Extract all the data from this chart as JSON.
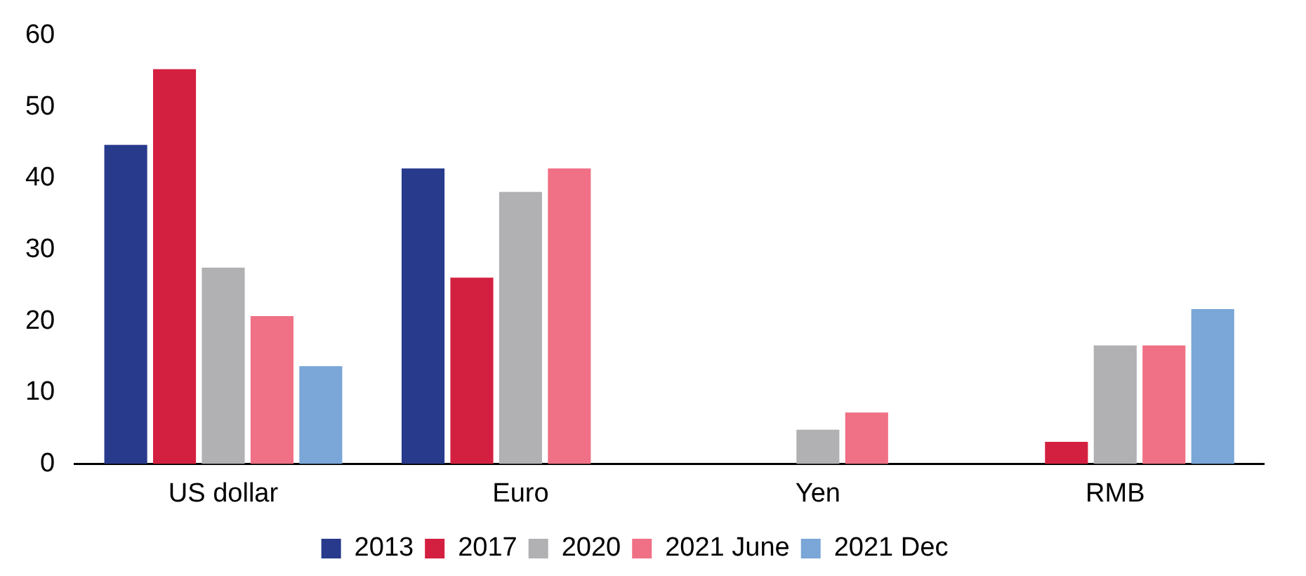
{
  "chart_data": {
    "type": "bar",
    "categories": [
      "US dollar",
      "Euro",
      "Yen",
      "RMB"
    ],
    "series": [
      {
        "name": "2013",
        "color": "#283a8c",
        "values": [
          44.7,
          41.4,
          null,
          null
        ]
      },
      {
        "name": "2017",
        "color": "#d42040",
        "values": [
          55.3,
          26.1,
          null,
          3.1
        ]
      },
      {
        "name": "2020",
        "color": "#b1b1b3",
        "values": [
          27.5,
          38.1,
          4.8,
          16.6
        ]
      },
      {
        "name": "2021 June",
        "color": "#f07086",
        "values": [
          20.7,
          41.4,
          7.2,
          16.6
        ]
      },
      {
        "name": "2021 Dec",
        "color": "#7aa6d8",
        "values": [
          13.7,
          null,
          null,
          21.7
        ]
      }
    ],
    "ylim": [
      0,
      60
    ],
    "yticks": [
      0,
      10,
      20,
      30,
      40,
      50,
      60
    ],
    "grid": false,
    "legend": "bottom"
  }
}
